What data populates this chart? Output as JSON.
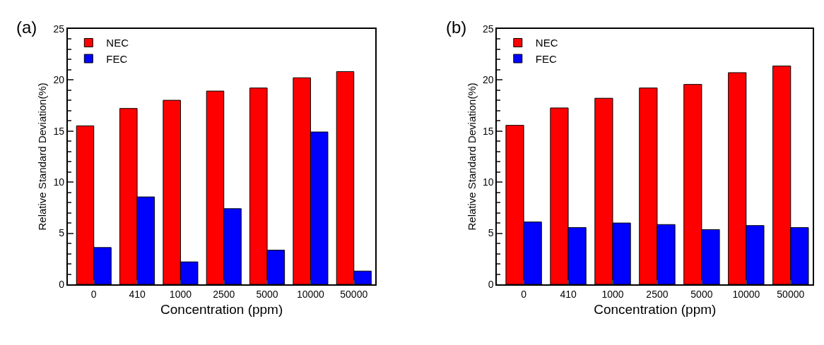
{
  "chart_data": [
    {
      "type": "bar",
      "title": "(a)",
      "xlabel": "Concentration (ppm)",
      "ylabel": "Relative Standard Deviation(%)",
      "categories": [
        "0",
        "410",
        "1000",
        "2500",
        "5000",
        "10000",
        "50000"
      ],
      "ylim": [
        0,
        25
      ],
      "yticks": [
        0,
        5,
        10,
        15,
        20,
        25
      ],
      "legend": "top left",
      "series": [
        {
          "name": "NEC",
          "color": "#ff0000",
          "values": [
            15.5,
            17.2,
            18.0,
            18.9,
            19.2,
            20.2,
            20.8
          ]
        },
        {
          "name": "FEC",
          "color": "#0000ff",
          "values": [
            3.6,
            8.55,
            2.2,
            7.4,
            3.35,
            14.9,
            1.3
          ]
        }
      ]
    },
    {
      "type": "bar",
      "title": "(b)",
      "xlabel": "Concentration (ppm)",
      "ylabel": "Relative Standard Deviation(%)",
      "categories": [
        "0",
        "410",
        "1000",
        "2500",
        "5000",
        "10000",
        "50000"
      ],
      "ylim": [
        0,
        25
      ],
      "yticks": [
        0,
        5,
        10,
        15,
        20,
        25
      ],
      "legend": "top left",
      "series": [
        {
          "name": "NEC",
          "color": "#ff0000",
          "values": [
            15.55,
            17.25,
            18.2,
            19.2,
            19.55,
            20.7,
            21.35
          ]
        },
        {
          "name": "FEC",
          "color": "#0000ff",
          "values": [
            6.1,
            5.55,
            6.0,
            5.85,
            5.35,
            5.75,
            5.55
          ]
        }
      ]
    }
  ]
}
